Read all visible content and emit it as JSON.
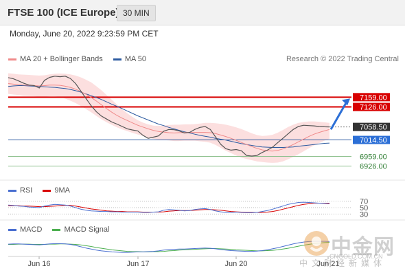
{
  "header": {
    "title": "FTSE 100 (ICE Europe)",
    "timeframe": "30 MIN"
  },
  "datetime": "Monday, June 20, 2022 9:23:59 PM CET",
  "credit": "Research © 2022 Trading Central",
  "colors": {
    "price_line": "#555555",
    "bollinger_fill": "#fbd9d9",
    "ma20": "#f08a8a",
    "ma50": "#2c5aa0",
    "resistance": "#d80000",
    "support": "#2c5aa0",
    "target": "#2c6fd6",
    "green": "#8fc18f",
    "rsi": "#4a6fd0",
    "rsi_ma": "#d80000",
    "macd": "#4a6fd0",
    "macd_signal": "#4caf50"
  },
  "chart_data": [
    {
      "type": "line",
      "panel": "price",
      "legend": [
        {
          "name": "MA 20 + Bollinger Bands",
          "color": "#f08a8a"
        },
        {
          "name": "MA 50",
          "color": "#2c5aa0"
        }
      ],
      "x_ticks": [
        "Jun 16",
        "Jun 17",
        "Jun 20",
        "Jun 21"
      ],
      "ylim": [
        6895,
        7255
      ],
      "price": [
        7225,
        7221,
        7214,
        7206,
        7200,
        7198,
        7190,
        7216,
        7226,
        7230,
        7228,
        7230,
        7222,
        7205,
        7180,
        7155,
        7130,
        7110,
        7095,
        7085,
        7075,
        7068,
        7060,
        7052,
        7048,
        7045,
        7030,
        7020,
        7024,
        7028,
        7044,
        7050,
        7049,
        7045,
        7038,
        7040,
        7050,
        7057,
        7060,
        7050,
        7025,
        7000,
        6985,
        6980,
        6982,
        6978,
        6962,
        6960,
        6962,
        6972,
        6980,
        6990,
        7005,
        7020,
        7035,
        7050,
        7060,
        7064,
        7063,
        7062,
        7060,
        7059,
        7058.5
      ],
      "ma20": [
        7205,
        7203,
        7201,
        7200,
        7199,
        7198,
        7197,
        7198,
        7200,
        7200,
        7199,
        7196,
        7192,
        7186,
        7178,
        7169,
        7158,
        7146,
        7133,
        7120,
        7108,
        7097,
        7088,
        7080,
        7072,
        7064,
        7058,
        7052,
        7047,
        7043,
        7041,
        7039,
        7038,
        7039,
        7040,
        7040,
        7040,
        7040,
        7040,
        7039,
        7036,
        7031,
        7026,
        7020,
        7013,
        7006,
        6999,
        6992,
        6986,
        6981,
        6978,
        6977,
        6979,
        6984,
        6991,
        6999,
        7008,
        7017,
        7026,
        7034,
        7040,
        7045,
        7050
      ],
      "boll_upper": [
        7240,
        7238,
        7236,
        7235,
        7234,
        7233,
        7232,
        7233,
        7236,
        7238,
        7239,
        7238,
        7236,
        7232,
        7226,
        7218,
        7209,
        7196,
        7182,
        7166,
        7150,
        7134,
        7118,
        7104,
        7092,
        7081,
        7073,
        7067,
        7063,
        7062,
        7063,
        7065,
        7066,
        7066,
        7067,
        7067,
        7068,
        7070,
        7072,
        7072,
        7071,
        7069,
        7066,
        7062,
        7057,
        7051,
        7044,
        7037,
        7031,
        7028,
        7029,
        7032,
        7039,
        7048,
        7058,
        7066,
        7072,
        7075,
        7077,
        7077,
        7076,
        7074,
        7072
      ],
      "boll_lower": [
        7170,
        7168,
        7166,
        7164,
        7163,
        7162,
        7160,
        7160,
        7162,
        7162,
        7160,
        7154,
        7147,
        7139,
        7129,
        7119,
        7108,
        7096,
        7084,
        7074,
        7065,
        7057,
        7050,
        7044,
        7038,
        7033,
        7028,
        7022,
        7018,
        7015,
        7014,
        7013,
        7011,
        7011,
        7012,
        7012,
        7012,
        7010,
        7008,
        7005,
        6998,
        6988,
        6978,
        6970,
        6962,
        6955,
        6950,
        6946,
        6942,
        6940,
        6938,
        6937,
        6938,
        6942,
        6949,
        6957,
        6966,
        6976,
        6986,
        6996,
        7004,
        7012,
        7018
      ],
      "ma50": [
        7195,
        7197,
        7198,
        7198,
        7197,
        7196,
        7195,
        7194,
        7193,
        7192,
        7190,
        7188,
        7185,
        7181,
        7176,
        7170,
        7164,
        7158,
        7151,
        7143,
        7135,
        7128,
        7120,
        7112,
        7104,
        7096,
        7089,
        7082,
        7075,
        7068,
        7063,
        7057,
        7052,
        7047,
        7042,
        7038,
        7034,
        7030,
        7027,
        7024,
        7020,
        7017,
        7014,
        7010,
        7006,
        7002,
        6999,
        6996,
        6993,
        6991,
        6990,
        6989,
        6989,
        6989,
        6990,
        6991,
        6993,
        6995,
        6997,
        6999,
        7001,
        7003,
        7004
      ],
      "levels": [
        {
          "value": 7159.0,
          "label": "7159.00",
          "kind": "resistance"
        },
        {
          "value": 7126.0,
          "label": "7126.00",
          "kind": "resistance"
        },
        {
          "value": 7058.5,
          "label": "7058.50",
          "kind": "last"
        },
        {
          "value": 7014.5,
          "label": "7014.50",
          "kind": "pivot"
        },
        {
          "value": 6959.0,
          "label": "6959.00",
          "kind": "support"
        },
        {
          "value": 6926.0,
          "label": "6926.00",
          "kind": "support"
        }
      ],
      "target_arrow": {
        "from": 7050,
        "to": 7159
      }
    },
    {
      "type": "line",
      "panel": "rsi",
      "legend": [
        {
          "name": "RSI",
          "color": "#4a6fd0"
        },
        {
          "name": "9MA",
          "color": "#d80000"
        }
      ],
      "ylim": [
        20,
        80
      ],
      "levels": [
        {
          "value": 70,
          "label": "70"
        },
        {
          "value": 50,
          "label": "50"
        },
        {
          "value": 30,
          "label": "30"
        }
      ],
      "rsi": [
        58,
        57,
        55,
        54,
        52,
        51,
        50,
        55,
        58,
        60,
        59,
        58,
        55,
        50,
        45,
        42,
        40,
        39,
        38,
        38,
        37,
        37,
        36,
        36,
        36,
        36,
        35,
        35,
        36,
        37,
        42,
        44,
        43,
        42,
        40,
        41,
        44,
        46,
        47,
        44,
        40,
        37,
        35,
        35,
        36,
        35,
        34,
        34,
        35,
        38,
        41,
        45,
        50,
        55,
        60,
        63,
        66,
        67,
        66,
        65,
        64,
        63,
        62
      ],
      "rsi_ma": [
        56,
        56,
        56,
        55,
        55,
        54,
        53,
        53,
        54,
        55,
        56,
        57,
        57,
        55,
        52,
        49,
        46,
        44,
        42,
        40,
        39,
        38,
        38,
        37,
        37,
        37,
        36,
        36,
        36,
        36,
        37,
        39,
        40,
        41,
        41,
        41,
        42,
        43,
        44,
        44,
        43,
        42,
        40,
        38,
        37,
        36,
        35,
        35,
        35,
        35,
        36,
        38,
        41,
        45,
        49,
        53,
        57,
        60,
        62,
        64,
        64,
        64,
        64
      ]
    },
    {
      "type": "line",
      "panel": "macd",
      "legend": [
        {
          "name": "MACD",
          "color": "#4a6fd0"
        },
        {
          "name": "MACD Signal",
          "color": "#4caf50"
        }
      ],
      "ylim": [
        -40,
        40
      ],
      "macd": [
        5,
        6,
        6,
        5,
        4,
        3,
        2,
        4,
        6,
        7,
        7,
        6,
        4,
        0,
        -5,
        -10,
        -14,
        -18,
        -21,
        -23,
        -25,
        -26,
        -27,
        -27,
        -26,
        -25,
        -25,
        -24,
        -23,
        -21,
        -18,
        -16,
        -15,
        -14,
        -14,
        -13,
        -12,
        -11,
        -10,
        -11,
        -13,
        -16,
        -18,
        -20,
        -21,
        -22,
        -23,
        -23,
        -22,
        -20,
        -17,
        -13,
        -9,
        -4,
        1,
        6,
        10,
        13,
        15,
        16,
        16,
        16,
        15
      ],
      "signal": [
        4,
        4,
        5,
        5,
        5,
        4,
        4,
        4,
        5,
        5,
        6,
        6,
        5,
        4,
        2,
        -1,
        -4,
        -8,
        -11,
        -14,
        -17,
        -19,
        -21,
        -23,
        -24,
        -24,
        -25,
        -25,
        -24,
        -24,
        -23,
        -21,
        -20,
        -18,
        -17,
        -16,
        -15,
        -14,
        -13,
        -12,
        -12,
        -13,
        -14,
        -15,
        -17,
        -18,
        -19,
        -20,
        -21,
        -21,
        -20,
        -19,
        -17,
        -14,
        -11,
        -7,
        -3,
        1,
        4,
        7,
        9,
        11,
        12
      ]
    }
  ],
  "watermark": {
    "text": "中金网",
    "url": "CNGOLD.COM.CN",
    "subtitle": "中文财经新媒体"
  }
}
